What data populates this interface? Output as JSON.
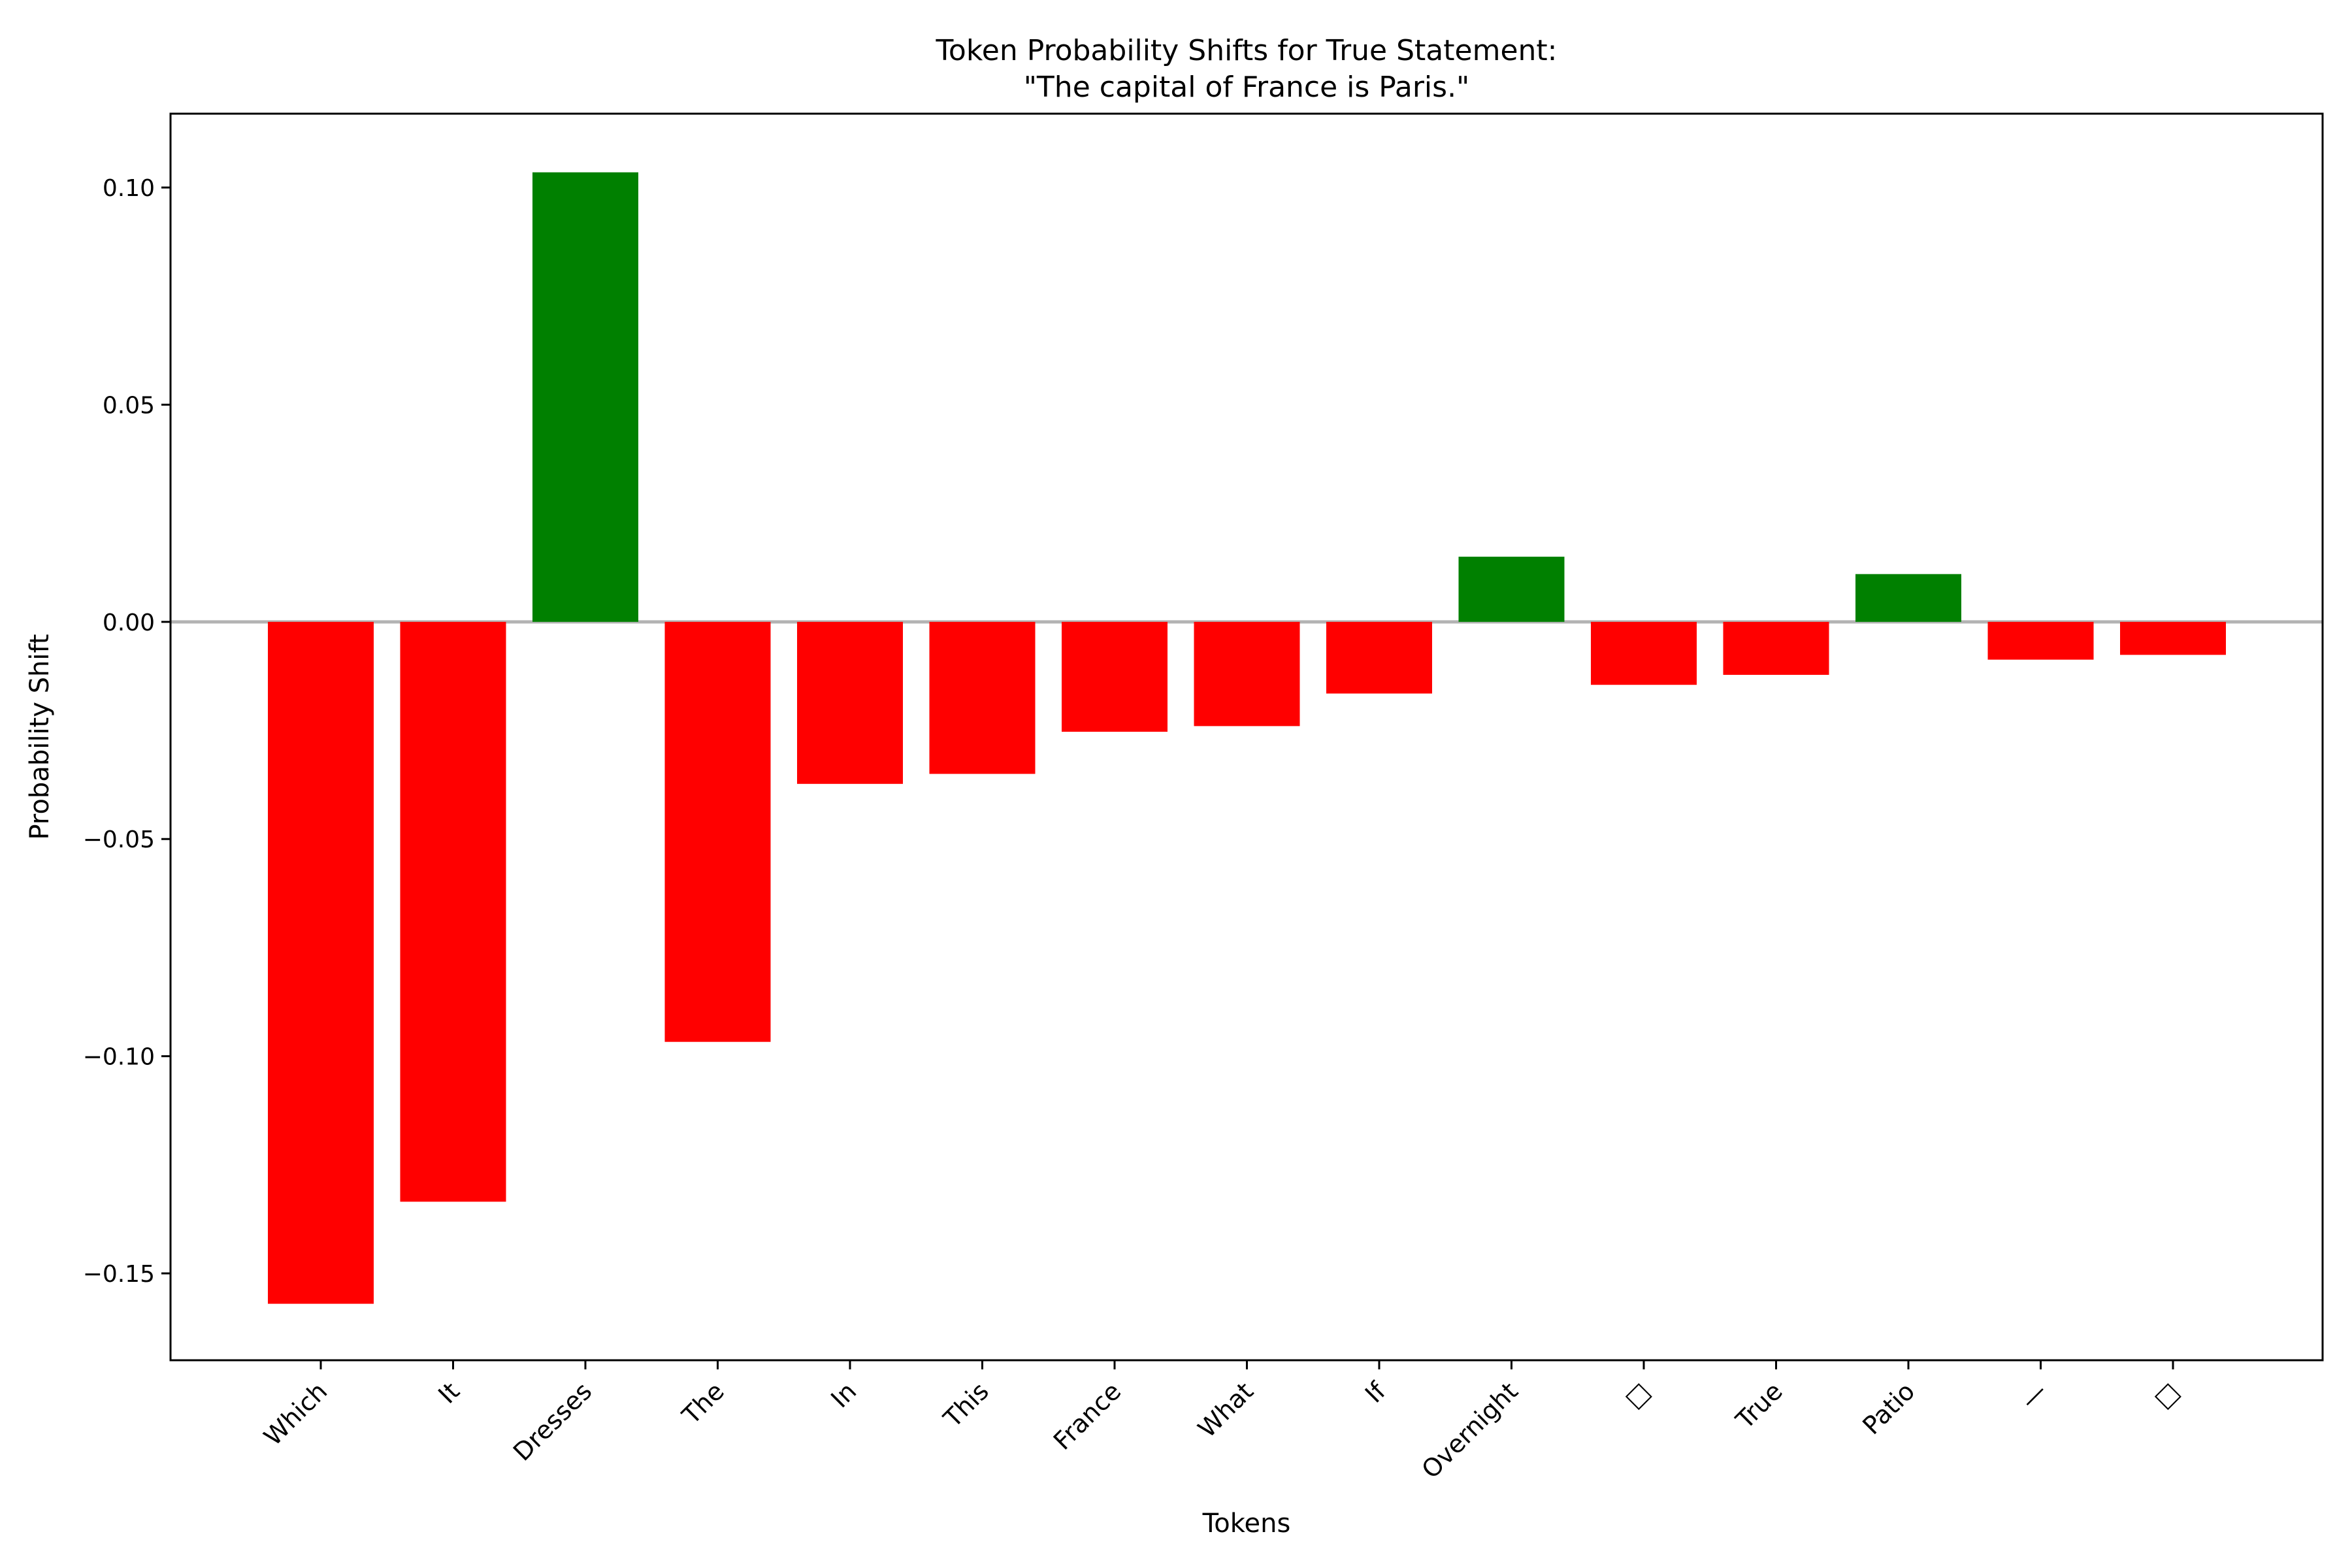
{
  "chart_data": {
    "type": "bar",
    "title_line1": "Token Probability Shifts for True Statement:",
    "title_line2": "\"The capital of France is Paris.\"",
    "xlabel": "Tokens",
    "ylabel": "Probability Shift",
    "categories": [
      "Which",
      "It",
      "Dresses",
      "The",
      "In",
      "This",
      "France",
      "What",
      "If",
      "Overnight",
      "□",
      "True",
      "Patio",
      "—",
      "□"
    ],
    "values": [
      -0.157,
      -0.1335,
      0.1035,
      -0.0967,
      -0.0373,
      -0.035,
      -0.0253,
      -0.024,
      -0.0165,
      0.015,
      -0.0145,
      -0.0122,
      0.011,
      -0.0087,
      -0.0076
    ],
    "ylim": [
      -0.17,
      0.117
    ],
    "yticks": [
      0.1,
      0.05,
      0.0,
      -0.05,
      -0.1,
      -0.15
    ],
    "ytick_labels": [
      "0.10",
      "0.05",
      "0.00",
      "−0.05",
      "−0.10",
      "−0.15"
    ],
    "colors": {
      "positive": "#008000",
      "negative": "#ff0000",
      "zero_line": "#b3b3b3",
      "axes": "#000000"
    },
    "grid": false,
    "legend": "none"
  }
}
